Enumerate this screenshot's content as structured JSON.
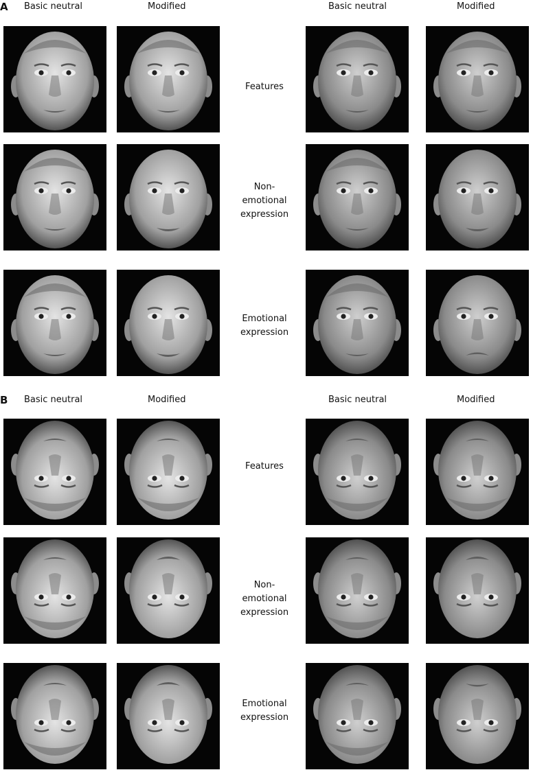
{
  "panels": [
    {
      "letter": "A",
      "column_headers": [
        "Basic neutral",
        "Modified",
        "Basic neutral",
        "Modified"
      ],
      "conditions": [
        {
          "lines": [
            "Features"
          ]
        },
        {
          "lines": [
            "Non-",
            "emotional",
            "expression"
          ]
        },
        {
          "lines": [
            "Emotional",
            "expression"
          ]
        }
      ]
    },
    {
      "letter": "B",
      "column_headers": [
        "Basic neutral",
        "Modified",
        "Basic neutral",
        "Modified"
      ],
      "conditions": [
        {
          "lines": [
            "Features"
          ]
        },
        {
          "lines": [
            "Non-",
            "emotional",
            "expression"
          ]
        },
        {
          "lines": [
            "Emotional",
            "expression"
          ]
        }
      ]
    }
  ],
  "panel_orientation": [
    "upright",
    "inverted"
  ],
  "colors": {
    "tile_background": "#050505",
    "skin_light": "#d8d8d8",
    "skin_dark": "#6a6a6a"
  }
}
